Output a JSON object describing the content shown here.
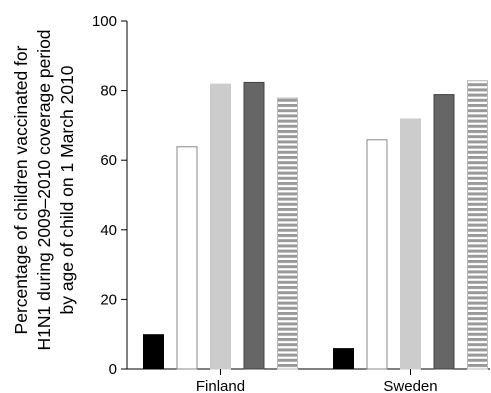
{
  "chart_data": {
    "type": "bar",
    "categories": [
      "Finland",
      "Sweden"
    ],
    "ylabel_lines": [
      "Percentage of children vaccinated for",
      "H1N1 during 2009–2010 coverage period",
      "by age of child on 1 March 2010"
    ],
    "ylim": [
      0,
      100
    ],
    "yticks": [
      "0",
      "20",
      "40",
      "60",
      "80",
      "100"
    ],
    "grid": false,
    "legend": "none",
    "series": [
      {
        "values": [
          10,
          6
        ],
        "style": "solid",
        "fill": "#000000",
        "stroke": "#000000"
      },
      {
        "values": [
          64,
          66
        ],
        "style": "solid",
        "fill": "#ffffff",
        "stroke": "#888888"
      },
      {
        "values": [
          82,
          72
        ],
        "style": "solid",
        "fill": "#cccccc",
        "stroke": "#cccccc"
      },
      {
        "values": [
          82.5,
          79
        ],
        "style": "solid",
        "fill": "#666666",
        "stroke": "#444444"
      },
      {
        "values": [
          78,
          83
        ],
        "style": "striped",
        "fill": "#999999",
        "stroke": "#bbbbbb"
      }
    ]
  }
}
